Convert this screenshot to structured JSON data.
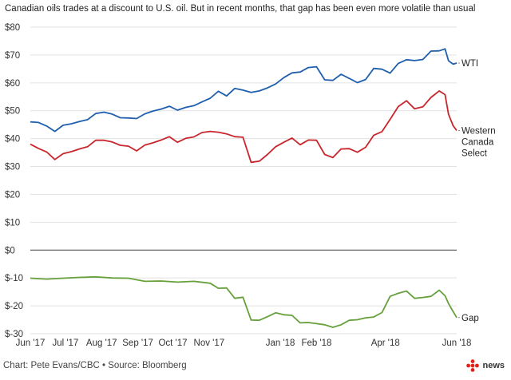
{
  "title": "Canadian oils trades at a discount to U.S. oil. But in recent months, that gap has been even more volatile than usual",
  "footer": "Chart: Pete Evans/CBC • Source: Bloomberg",
  "logo": {
    "text": "news",
    "icon": "cbc-gem-icon",
    "color": "#e2231a"
  },
  "chart_data": {
    "type": "line",
    "title": "Canadian oils trades at a discount to U.S. oil. But in recent months, that gap has been even more volatile than usual",
    "xlabel": "",
    "ylabel": "",
    "ylim": [
      -30,
      80
    ],
    "xlim": [
      "2017-06-01",
      "2018-06-01"
    ],
    "grid": true,
    "y_ticks": [
      "$80",
      "$70",
      "$60",
      "$50",
      "$40",
      "$30",
      "$20",
      "$10",
      "$0",
      "$-10",
      "$-20",
      "$-30"
    ],
    "y_tick_values": [
      80,
      70,
      60,
      50,
      40,
      30,
      20,
      10,
      0,
      -10,
      -20,
      -30
    ],
    "x_ticks": [
      {
        "label": "Jun '17",
        "date": "2017-06-01"
      },
      {
        "label": "Jul '17",
        "date": "2017-07-01"
      },
      {
        "label": "Aug '17",
        "date": "2017-08-01"
      },
      {
        "label": "Sep '17",
        "date": "2017-09-01"
      },
      {
        "label": "Oct '17",
        "date": "2017-10-01"
      },
      {
        "label": "Nov '17",
        "date": "2017-11-01"
      },
      {
        "label": "Jan '18",
        "date": "2018-01-01"
      },
      {
        "label": "Feb '18",
        "date": "2018-02-01"
      },
      {
        "label": "Apr '18",
        "date": "2018-04-01"
      },
      {
        "label": "Jun '18",
        "date": "2018-06-01"
      }
    ],
    "series": [
      {
        "name": "WTI",
        "color": "#1f5fad",
        "points": [
          [
            "2017-06-01",
            46
          ],
          [
            "2017-06-08",
            45.8
          ],
          [
            "2017-06-15",
            44.5
          ],
          [
            "2017-06-22",
            42.6
          ],
          [
            "2017-06-29",
            44.8
          ],
          [
            "2017-07-06",
            45.3
          ],
          [
            "2017-07-13",
            46.1
          ],
          [
            "2017-07-20",
            46.8
          ],
          [
            "2017-07-27",
            49
          ],
          [
            "2017-08-03",
            49.5
          ],
          [
            "2017-08-10",
            48.8
          ],
          [
            "2017-08-17",
            47.5
          ],
          [
            "2017-08-24",
            47.4
          ],
          [
            "2017-08-31",
            47.2
          ],
          [
            "2017-09-07",
            48.9
          ],
          [
            "2017-09-14",
            49.9
          ],
          [
            "2017-09-21",
            50.6
          ],
          [
            "2017-09-28",
            51.6
          ],
          [
            "2017-10-05",
            50.2
          ],
          [
            "2017-10-12",
            51.2
          ],
          [
            "2017-10-19",
            51.8
          ],
          [
            "2017-10-26",
            53.2
          ],
          [
            "2017-11-02",
            54.5
          ],
          [
            "2017-11-09",
            57
          ],
          [
            "2017-11-16",
            55.3
          ],
          [
            "2017-11-23",
            58
          ],
          [
            "2017-11-30",
            57.4
          ],
          [
            "2017-12-07",
            56.6
          ],
          [
            "2017-12-14",
            57.1
          ],
          [
            "2017-12-21",
            58.2
          ],
          [
            "2017-12-28",
            59.6
          ],
          [
            "2018-01-04",
            61.9
          ],
          [
            "2018-01-11",
            63.6
          ],
          [
            "2018-01-18",
            63.9
          ],
          [
            "2018-01-25",
            65.5
          ],
          [
            "2018-02-01",
            65.8
          ],
          [
            "2018-02-08",
            61.1
          ],
          [
            "2018-02-15",
            60.9
          ],
          [
            "2018-02-22",
            63.1
          ],
          [
            "2018-03-01",
            61.6
          ],
          [
            "2018-03-08",
            60.1
          ],
          [
            "2018-03-15",
            61.2
          ],
          [
            "2018-03-22",
            65.2
          ],
          [
            "2018-03-29",
            64.9
          ],
          [
            "2018-04-05",
            63.5
          ],
          [
            "2018-04-12",
            67
          ],
          [
            "2018-04-19",
            68.3
          ],
          [
            "2018-04-26",
            68
          ],
          [
            "2018-05-03",
            68.4
          ],
          [
            "2018-05-10",
            71.4
          ],
          [
            "2018-05-17",
            71.5
          ],
          [
            "2018-05-22",
            72.2
          ],
          [
            "2018-05-25",
            67.9
          ],
          [
            "2018-05-29",
            66.7
          ],
          [
            "2018-06-01",
            67.1
          ]
        ]
      },
      {
        "name": "Western Canada Select",
        "label_lines": [
          "Western",
          "Canada",
          "Select"
        ],
        "color": "#c8262c",
        "points": [
          [
            "2017-06-01",
            38
          ],
          [
            "2017-06-08",
            36.5
          ],
          [
            "2017-06-15",
            35.2
          ],
          [
            "2017-06-22",
            32.5
          ],
          [
            "2017-06-29",
            34.6
          ],
          [
            "2017-07-06",
            35.3
          ],
          [
            "2017-07-13",
            36.3
          ],
          [
            "2017-07-20",
            37.1
          ],
          [
            "2017-07-27",
            39.4
          ],
          [
            "2017-08-03",
            39.4
          ],
          [
            "2017-08-10",
            38.8
          ],
          [
            "2017-08-17",
            37.6
          ],
          [
            "2017-08-24",
            37.3
          ],
          [
            "2017-08-31",
            35.6
          ],
          [
            "2017-09-07",
            37.7
          ],
          [
            "2017-09-14",
            38.5
          ],
          [
            "2017-09-21",
            39.5
          ],
          [
            "2017-09-28",
            40.7
          ],
          [
            "2017-10-05",
            38.7
          ],
          [
            "2017-10-12",
            40.1
          ],
          [
            "2017-10-19",
            40.6
          ],
          [
            "2017-10-26",
            42.2
          ],
          [
            "2017-11-02",
            42.6
          ],
          [
            "2017-11-09",
            42.3
          ],
          [
            "2017-11-16",
            41.7
          ],
          [
            "2017-11-23",
            40.7
          ],
          [
            "2017-11-30",
            40.5
          ],
          [
            "2017-12-07",
            31.5
          ],
          [
            "2017-12-14",
            31.9
          ],
          [
            "2017-12-21",
            34.3
          ],
          [
            "2017-12-28",
            37.1
          ],
          [
            "2018-01-04",
            38.7
          ],
          [
            "2018-01-11",
            40.2
          ],
          [
            "2018-01-18",
            37.8
          ],
          [
            "2018-01-25",
            39.5
          ],
          [
            "2018-02-01",
            39.4
          ],
          [
            "2018-02-08",
            34.3
          ],
          [
            "2018-02-15",
            33.2
          ],
          [
            "2018-02-22",
            36.3
          ],
          [
            "2018-03-01",
            36.4
          ],
          [
            "2018-03-08",
            35.1
          ],
          [
            "2018-03-15",
            36.9
          ],
          [
            "2018-03-22",
            41.2
          ],
          [
            "2018-03-29",
            42.5
          ],
          [
            "2018-04-05",
            46.9
          ],
          [
            "2018-04-12",
            51.5
          ],
          [
            "2018-04-19",
            53.6
          ],
          [
            "2018-04-26",
            50.7
          ],
          [
            "2018-05-03",
            51.4
          ],
          [
            "2018-05-10",
            54.8
          ],
          [
            "2018-05-17",
            57.1
          ],
          [
            "2018-05-22",
            55.8
          ],
          [
            "2018-05-25",
            48.7
          ],
          [
            "2018-05-29",
            44.6
          ],
          [
            "2018-06-01",
            42.9
          ]
        ]
      },
      {
        "name": "Gap",
        "color": "#66a03b",
        "points": [
          [
            "2017-06-01",
            -10.1
          ],
          [
            "2017-06-15",
            -10.4
          ],
          [
            "2017-06-29",
            -10.1
          ],
          [
            "2017-07-13",
            -9.8
          ],
          [
            "2017-07-27",
            -9.6
          ],
          [
            "2017-08-10",
            -10
          ],
          [
            "2017-08-24",
            -10.1
          ],
          [
            "2017-09-07",
            -11.2
          ],
          [
            "2017-09-21",
            -11.1
          ],
          [
            "2017-10-05",
            -11.5
          ],
          [
            "2017-10-19",
            -11.2
          ],
          [
            "2017-11-02",
            -11.9
          ],
          [
            "2017-11-09",
            -13.7
          ],
          [
            "2017-11-16",
            -13.6
          ],
          [
            "2017-11-23",
            -17.3
          ],
          [
            "2017-11-30",
            -16.9
          ],
          [
            "2017-12-07",
            -25.1
          ],
          [
            "2017-12-14",
            -25.2
          ],
          [
            "2017-12-21",
            -23.9
          ],
          [
            "2017-12-28",
            -22.5
          ],
          [
            "2018-01-04",
            -23.2
          ],
          [
            "2018-01-11",
            -23.4
          ],
          [
            "2018-01-18",
            -26.1
          ],
          [
            "2018-01-25",
            -26
          ],
          [
            "2018-02-01",
            -26.4
          ],
          [
            "2018-02-08",
            -26.8
          ],
          [
            "2018-02-15",
            -27.7
          ],
          [
            "2018-02-22",
            -26.8
          ],
          [
            "2018-03-01",
            -25.2
          ],
          [
            "2018-03-08",
            -25
          ],
          [
            "2018-03-15",
            -24.3
          ],
          [
            "2018-03-22",
            -24
          ],
          [
            "2018-03-29",
            -22.4
          ],
          [
            "2018-04-05",
            -16.6
          ],
          [
            "2018-04-12",
            -15.5
          ],
          [
            "2018-04-19",
            -14.7
          ],
          [
            "2018-04-26",
            -17.3
          ],
          [
            "2018-05-03",
            -17
          ],
          [
            "2018-05-10",
            -16.6
          ],
          [
            "2018-05-17",
            -14.4
          ],
          [
            "2018-05-22",
            -16.4
          ],
          [
            "2018-05-25",
            -19.2
          ],
          [
            "2018-05-29",
            -22.1
          ],
          [
            "2018-06-01",
            -24.2
          ]
        ]
      }
    ]
  }
}
